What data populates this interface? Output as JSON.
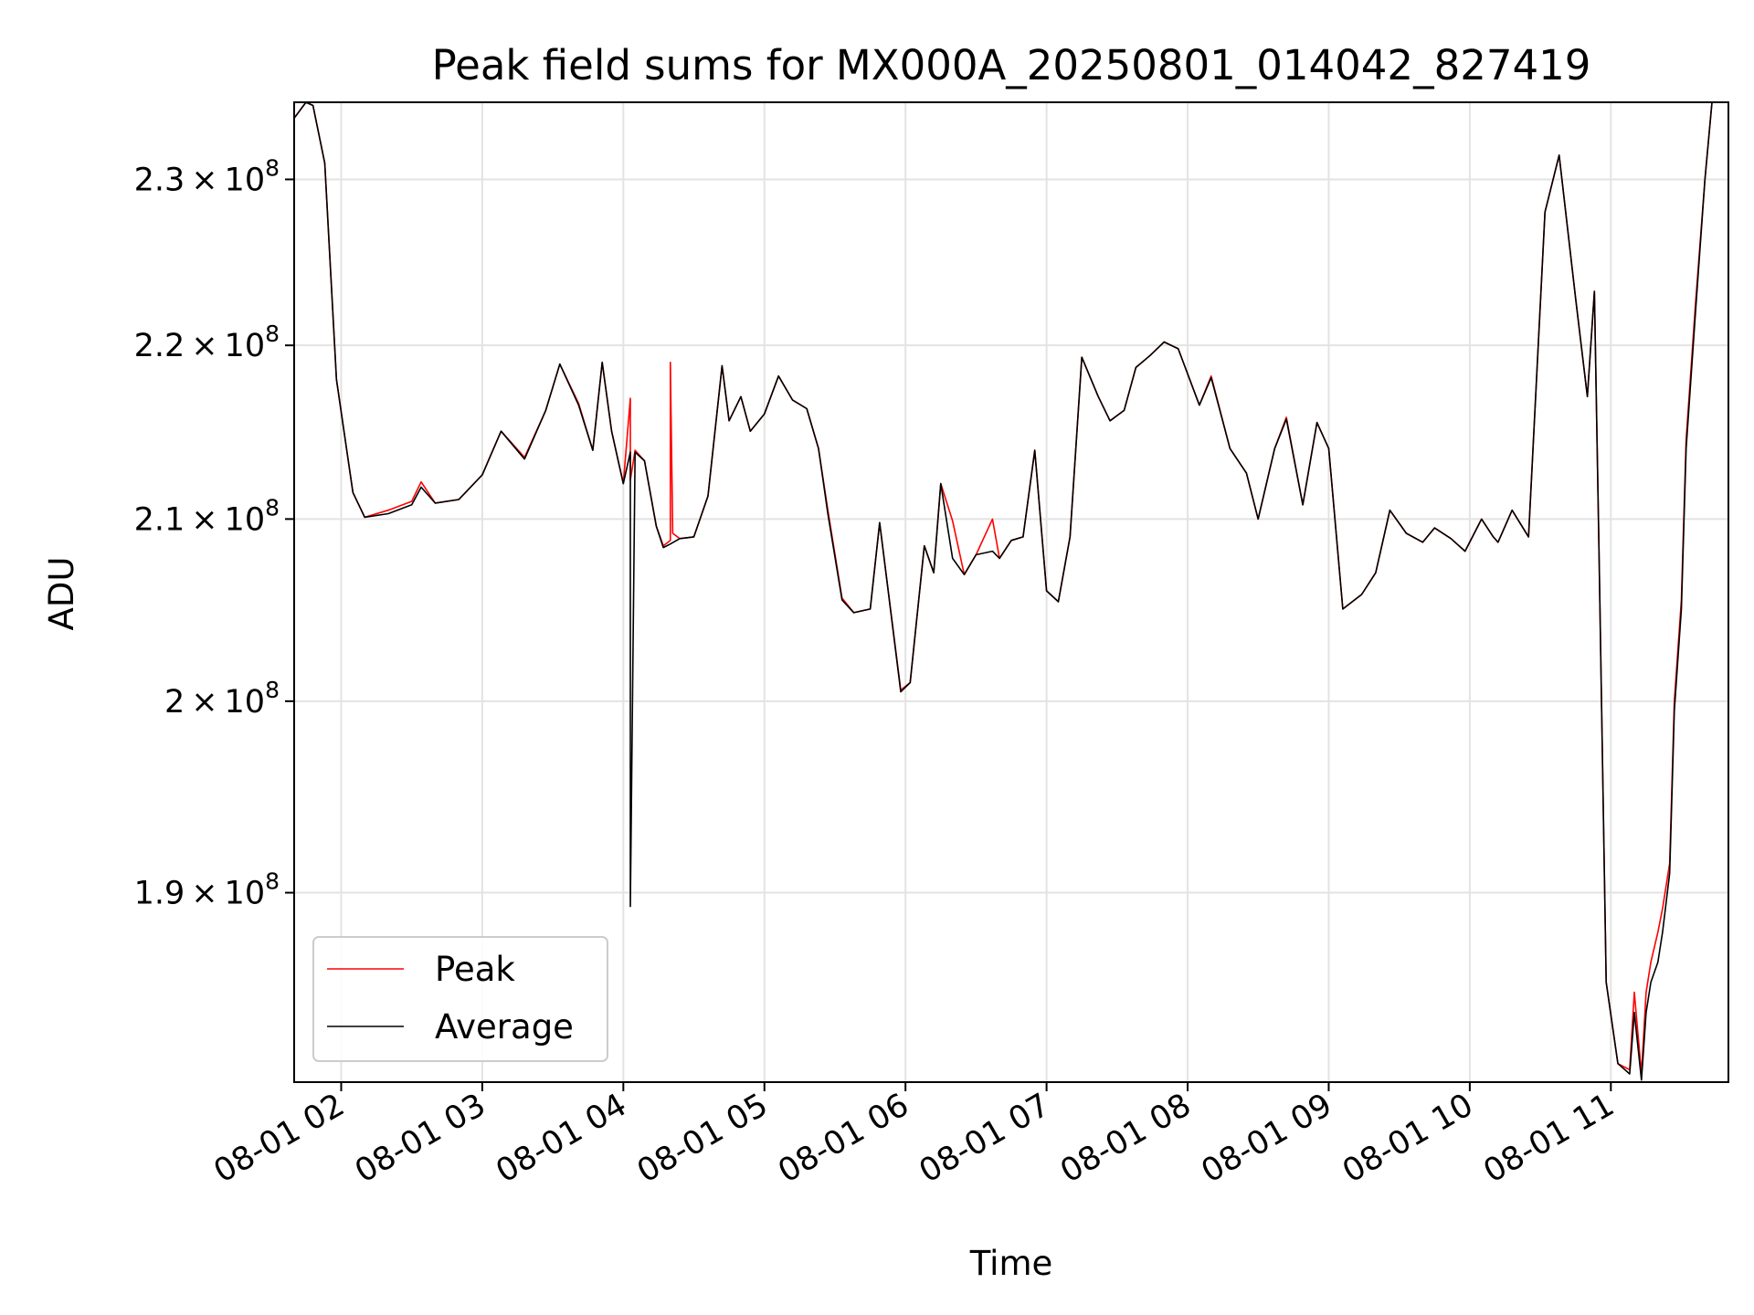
{
  "chart_data": {
    "type": "line",
    "title": "Peak field sums for MX000A_20250801_014042_827419",
    "xlabel": "Time",
    "ylabel": "ADU",
    "xlim": [
      "08-01 01:40",
      "08-01 11:50"
    ],
    "ylim": [
      180600000,
      234800000
    ],
    "y_scale": "log",
    "grid": true,
    "legend_position": "lower-left",
    "x_ticks": [
      {
        "t": 2,
        "label": "08-01 02"
      },
      {
        "t": 3,
        "label": "08-01 03"
      },
      {
        "t": 4,
        "label": "08-01 04"
      },
      {
        "t": 5,
        "label": "08-01 05"
      },
      {
        "t": 6,
        "label": "08-01 06"
      },
      {
        "t": 7,
        "label": "08-01 07"
      },
      {
        "t": 8,
        "label": "08-01 08"
      },
      {
        "t": 9,
        "label": "08-01 09"
      },
      {
        "t": 10,
        "label": "08-01 10"
      },
      {
        "t": 11,
        "label": "08-01 11"
      }
    ],
    "y_ticks": [
      {
        "v": 190000000,
        "mant": "1.9",
        "exp": "8"
      },
      {
        "v": 200000000,
        "mant": "2",
        "exp": "8"
      },
      {
        "v": 210000000,
        "mant": "2.1",
        "exp": "8"
      },
      {
        "v": 220000000,
        "mant": "2.2",
        "exp": "8"
      },
      {
        "v": 230000000,
        "mant": "2.3",
        "exp": "8"
      }
    ],
    "series": [
      {
        "name": "Peak",
        "color": "#ff0000",
        "x": [
          "08-01 01:40",
          "08-01 01:45",
          "08-01 01:48",
          "08-01 01:53",
          "08-01 01:58",
          "08-01 02:05",
          "08-01 02:10",
          "08-01 02:20",
          "08-01 02:30",
          "08-01 02:34",
          "08-01 02:40",
          "08-01 02:50",
          "08-01 03:00",
          "08-01 03:08",
          "08-01 03:18",
          "08-01 03:27",
          "08-01 03:33",
          "08-01 03:41",
          "08-01 03:47",
          "08-01 03:51",
          "08-01 03:55",
          "08-01 04:00",
          "08-01 04:03",
          "08-01 04:03",
          "08-01 04:05",
          "08-01 04:09",
          "08-01 04:14",
          "08-01 04:17",
          "08-01 04:20",
          "08-01 04:20",
          "08-01 04:21",
          "08-01 04:24",
          "08-01 04:30",
          "08-01 04:36",
          "08-01 04:42",
          "08-01 04:45",
          "08-01 04:50",
          "08-01 04:54",
          "08-01 05:00",
          "08-01 05:06",
          "08-01 05:12",
          "08-01 05:18",
          "08-01 05:23",
          "08-01 05:27",
          "08-01 05:33",
          "08-01 05:38",
          "08-01 05:45",
          "08-01 05:49",
          "08-01 05:58",
          "08-01 06:02",
          "08-01 06:08",
          "08-01 06:12",
          "08-01 06:15",
          "08-01 06:20",
          "08-01 06:25",
          "08-01 06:30",
          "08-01 06:37",
          "08-01 06:40",
          "08-01 06:45",
          "08-01 06:50",
          "08-01 06:55",
          "08-01 07:00",
          "08-01 07:05",
          "08-01 07:10",
          "08-01 07:15",
          "08-01 07:22",
          "08-01 07:27",
          "08-01 07:33",
          "08-01 07:38",
          "08-01 07:44",
          "08-01 07:50",
          "08-01 07:56",
          "08-01 08:05",
          "08-01 08:10",
          "08-01 08:18",
          "08-01 08:25",
          "08-01 08:30",
          "08-01 08:37",
          "08-01 08:42",
          "08-01 08:49",
          "08-01 08:55",
          "08-01 09:00",
          "08-01 09:06",
          "08-01 09:14",
          "08-01 09:20",
          "08-01 09:26",
          "08-01 09:33",
          "08-01 09:40",
          "08-01 09:45",
          "08-01 09:52",
          "08-01 09:58",
          "08-01 10:05",
          "08-01 10:10",
          "08-01 10:12",
          "08-01 10:18",
          "08-01 10:25",
          "08-01 10:32",
          "08-01 10:38",
          "08-01 10:45",
          "08-01 10:50",
          "08-01 10:53",
          "08-01 10:55",
          "08-01 10:58",
          "08-01 11:03",
          "08-01 11:08",
          "08-01 11:10",
          "08-01 11:13",
          "08-01 11:15",
          "08-01 11:17",
          "08-01 11:20",
          "08-01 11:22",
          "08-01 11:25",
          "08-01 11:27",
          "08-01 11:30",
          "08-01 11:32",
          "08-01 11:36",
          "08-01 11:40",
          "08-01 11:43",
          "08-01 11:46",
          "08-01 11:50"
        ],
        "values": [
          233800000,
          234800000,
          234600000,
          231000000,
          218000000,
          211500000,
          210100000,
          210500000,
          211000000,
          212100000,
          210900000,
          211100000,
          212500000,
          215000000,
          213500000,
          216200000,
          218900000,
          216600000,
          213900000,
          219000000,
          215000000,
          212000000,
          216900000,
          212200000,
          213900000,
          213300000,
          209600000,
          208500000,
          208800000,
          219000000,
          209200000,
          208900000,
          209000000,
          211300000,
          218800000,
          215600000,
          217000000,
          215000000,
          216000000,
          218200000,
          216800000,
          216300000,
          214000000,
          210500000,
          205600000,
          204800000,
          205000000,
          209800000,
          200600000,
          201000000,
          208500000,
          207000000,
          212000000,
          209900000,
          206900000,
          208000000,
          210000000,
          207800000,
          208800000,
          209000000,
          213900000,
          206000000,
          205400000,
          209000000,
          219300000,
          217000000,
          215600000,
          216200000,
          218700000,
          219400000,
          220200000,
          219800000,
          216500000,
          218200000,
          214000000,
          212600000,
          210000000,
          214000000,
          215800000,
          210800000,
          215500000,
          214000000,
          205000000,
          205800000,
          207000000,
          210500000,
          209200000,
          208700000,
          209500000,
          208900000,
          208200000,
          210000000,
          209000000,
          208700000,
          210500000,
          209000000,
          228000000,
          231500000,
          222800000,
          217000000,
          223200000,
          208000000,
          185500000,
          181500000,
          181200000,
          185000000,
          181000000,
          185000000,
          186500000,
          188000000,
          189200000,
          191500000,
          200000000,
          205500000,
          214500000,
          222500000,
          230000000,
          234800000,
          234800000,
          234800000
        ]
      },
      {
        "name": "Average",
        "color": "#000000",
        "x": [
          "08-01 01:40",
          "08-01 01:45",
          "08-01 01:48",
          "08-01 01:53",
          "08-01 01:58",
          "08-01 02:05",
          "08-01 02:10",
          "08-01 02:20",
          "08-01 02:30",
          "08-01 02:34",
          "08-01 02:40",
          "08-01 02:50",
          "08-01 03:00",
          "08-01 03:08",
          "08-01 03:18",
          "08-01 03:27",
          "08-01 03:33",
          "08-01 03:41",
          "08-01 03:47",
          "08-01 03:51",
          "08-01 03:55",
          "08-01 04:00",
          "08-01 04:03",
          "08-01 04:03",
          "08-01 04:05",
          "08-01 04:09",
          "08-01 04:14",
          "08-01 04:17",
          "08-01 04:20",
          "08-01 04:24",
          "08-01 04:30",
          "08-01 04:36",
          "08-01 04:42",
          "08-01 04:45",
          "08-01 04:50",
          "08-01 04:54",
          "08-01 05:00",
          "08-01 05:06",
          "08-01 05:12",
          "08-01 05:18",
          "08-01 05:23",
          "08-01 05:27",
          "08-01 05:33",
          "08-01 05:38",
          "08-01 05:45",
          "08-01 05:49",
          "08-01 05:58",
          "08-01 06:02",
          "08-01 06:08",
          "08-01 06:12",
          "08-01 06:15",
          "08-01 06:20",
          "08-01 06:25",
          "08-01 06:30",
          "08-01 06:37",
          "08-01 06:40",
          "08-01 06:45",
          "08-01 06:50",
          "08-01 06:55",
          "08-01 07:00",
          "08-01 07:05",
          "08-01 07:10",
          "08-01 07:15",
          "08-01 07:22",
          "08-01 07:27",
          "08-01 07:33",
          "08-01 07:38",
          "08-01 07:44",
          "08-01 07:50",
          "08-01 07:56",
          "08-01 08:05",
          "08-01 08:10",
          "08-01 08:18",
          "08-01 08:25",
          "08-01 08:30",
          "08-01 08:37",
          "08-01 08:42",
          "08-01 08:49",
          "08-01 08:55",
          "08-01 09:00",
          "08-01 09:06",
          "08-01 09:14",
          "08-01 09:20",
          "08-01 09:26",
          "08-01 09:33",
          "08-01 09:40",
          "08-01 09:45",
          "08-01 09:52",
          "08-01 09:58",
          "08-01 10:05",
          "08-01 10:10",
          "08-01 10:12",
          "08-01 10:18",
          "08-01 10:25",
          "08-01 10:32",
          "08-01 10:38",
          "08-01 10:45",
          "08-01 10:50",
          "08-01 10:53",
          "08-01 10:55",
          "08-01 10:58",
          "08-01 11:03",
          "08-01 11:08",
          "08-01 11:10",
          "08-01 11:13",
          "08-01 11:15",
          "08-01 11:17",
          "08-01 11:20",
          "08-01 11:22",
          "08-01 11:25",
          "08-01 11:27",
          "08-01 11:30",
          "08-01 11:32",
          "08-01 11:36",
          "08-01 11:40",
          "08-01 11:43",
          "08-01 11:46",
          "08-01 11:50"
        ],
        "values": [
          233800000,
          234800000,
          234600000,
          231000000,
          218000000,
          211500000,
          210100000,
          210300000,
          210800000,
          211800000,
          210900000,
          211100000,
          212500000,
          215000000,
          213400000,
          216200000,
          218900000,
          216500000,
          213900000,
          219000000,
          215000000,
          212000000,
          213800000,
          189300000,
          213800000,
          213300000,
          209600000,
          208400000,
          208600000,
          208900000,
          209000000,
          211300000,
          218800000,
          215600000,
          217000000,
          215000000,
          216000000,
          218200000,
          216800000,
          216300000,
          214000000,
          210300000,
          205500000,
          204800000,
          205000000,
          209800000,
          200500000,
          201000000,
          208500000,
          207000000,
          212000000,
          207800000,
          206900000,
          208000000,
          208200000,
          207800000,
          208800000,
          209000000,
          213900000,
          206000000,
          205400000,
          209000000,
          219300000,
          217000000,
          215600000,
          216200000,
          218700000,
          219400000,
          220200000,
          219800000,
          216500000,
          218100000,
          214000000,
          212600000,
          210000000,
          214000000,
          215700000,
          210800000,
          215500000,
          214000000,
          205000000,
          205800000,
          207000000,
          210500000,
          209200000,
          208700000,
          209500000,
          208900000,
          208200000,
          210000000,
          209000000,
          208700000,
          210500000,
          209000000,
          228000000,
          231500000,
          222800000,
          217000000,
          223200000,
          208000000,
          185500000,
          181500000,
          181000000,
          184000000,
          180700000,
          184000000,
          185500000,
          186500000,
          188000000,
          191000000,
          199500000,
          205000000,
          214000000,
          222000000,
          230000000,
          234800000,
          234800000,
          234800000
        ]
      }
    ]
  }
}
